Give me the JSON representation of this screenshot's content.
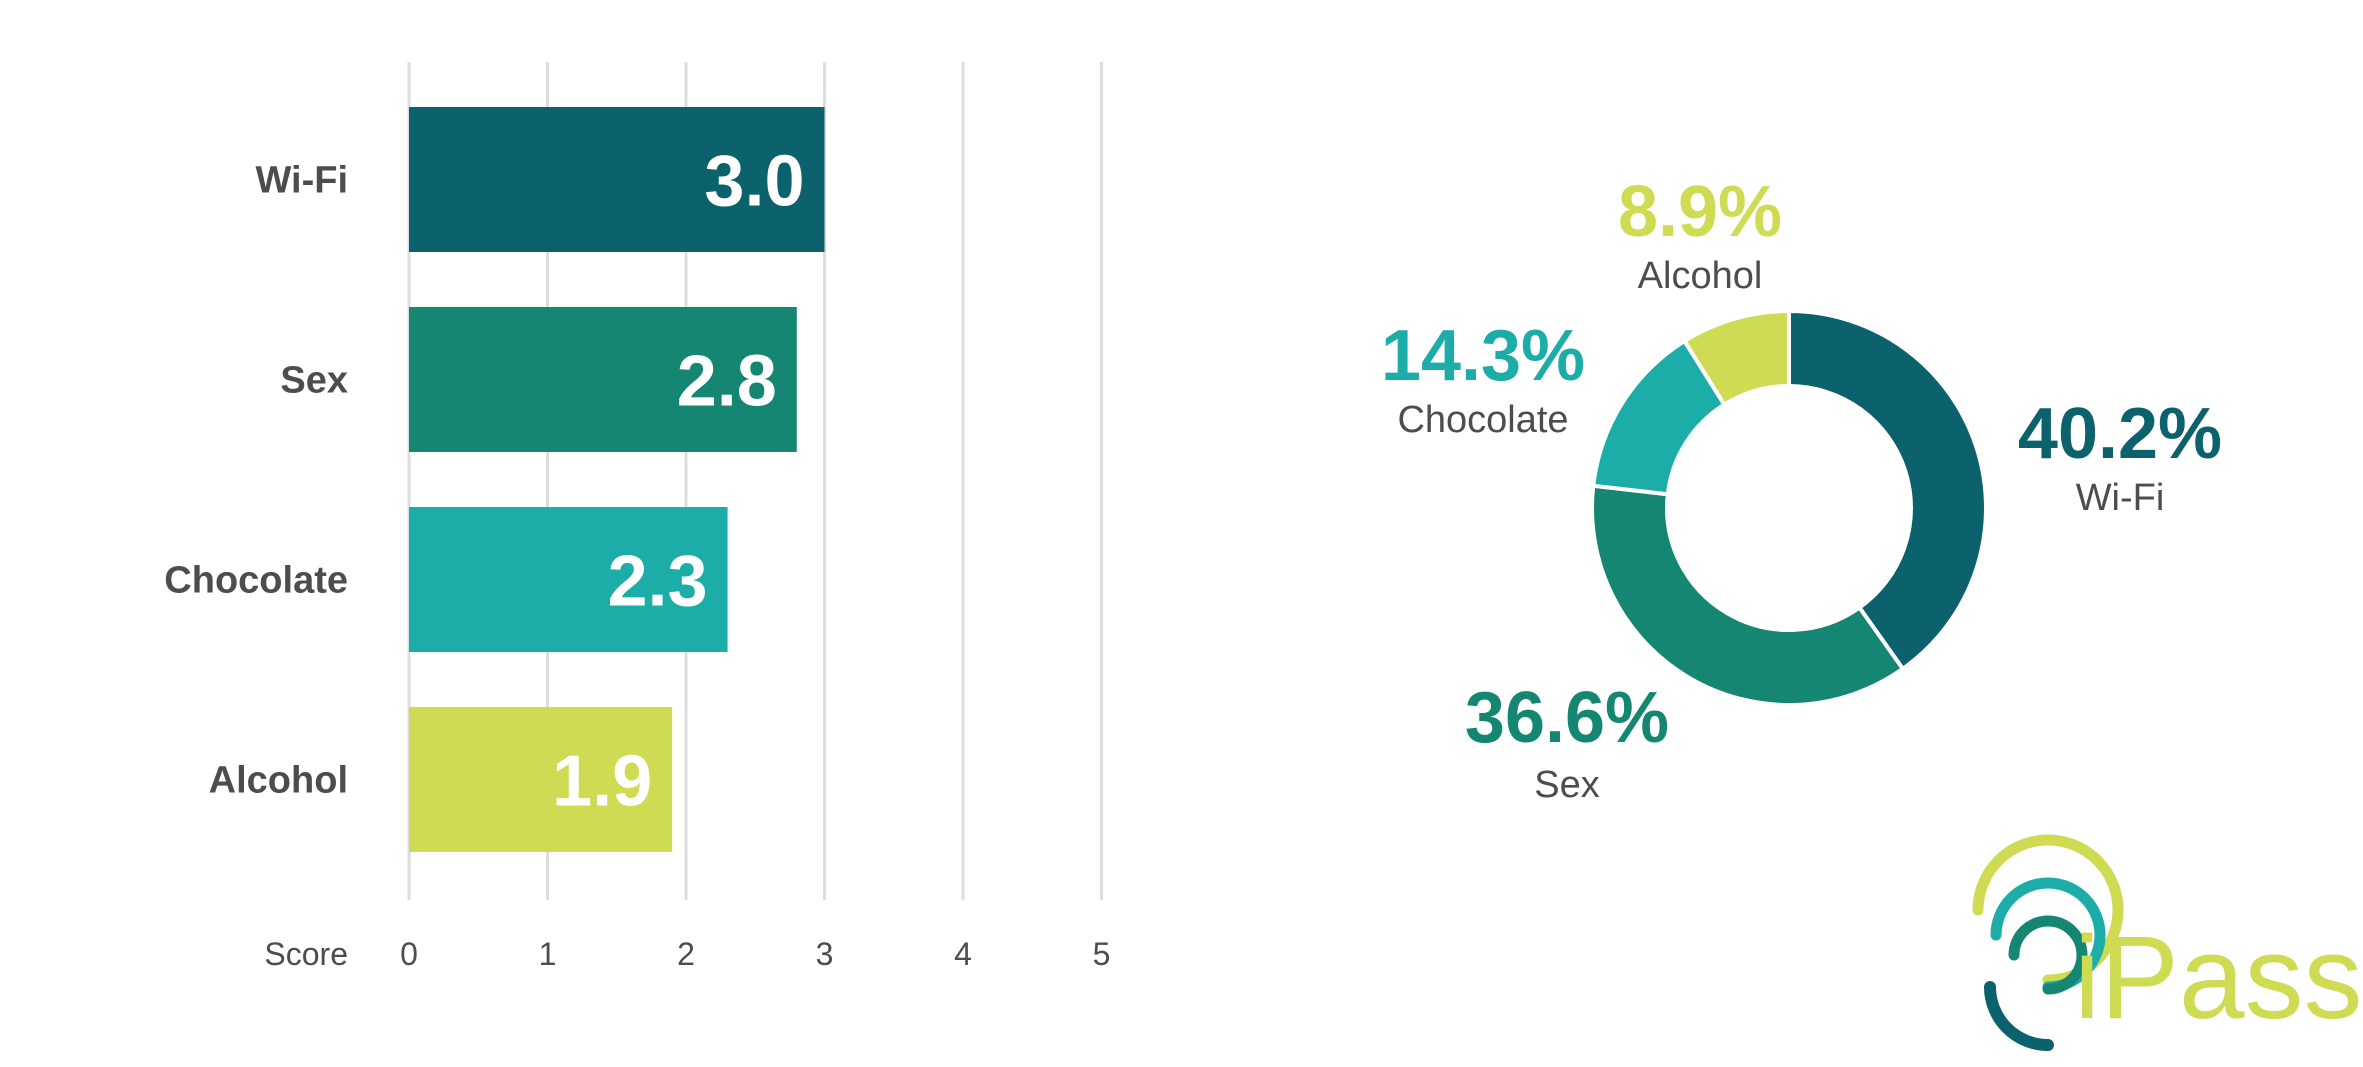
{
  "chart_data": [
    {
      "type": "bar",
      "orientation": "horizontal",
      "categories": [
        "Wi-Fi",
        "Sex",
        "Chocolate",
        "Alcohol"
      ],
      "values": [
        3.0,
        2.8,
        2.3,
        1.9
      ],
      "value_labels": [
        "3.0",
        "2.8",
        "2.3",
        "1.9"
      ],
      "colors": [
        "#0b616c",
        "#148672",
        "#1cada8",
        "#cfdb52"
      ],
      "xlabel": "Score",
      "xlim": [
        0,
        5
      ],
      "xticks": [
        "0",
        "1",
        "2",
        "3",
        "4",
        "5"
      ],
      "grid": true
    },
    {
      "type": "pie",
      "style": "donut",
      "categories": [
        "Wi-Fi",
        "Sex",
        "Chocolate",
        "Alcohol"
      ],
      "values": [
        40.2,
        36.6,
        14.3,
        8.9
      ],
      "value_labels": [
        "40.2%",
        "36.6%",
        "14.3%",
        "8.9%"
      ],
      "colors": [
        "#0b616c",
        "#148672",
        "#1cada8",
        "#cfdb52"
      ]
    }
  ],
  "logo": {
    "text": "iPass",
    "colors": [
      "#0b616c",
      "#1cada8",
      "#cfdb52"
    ]
  }
}
